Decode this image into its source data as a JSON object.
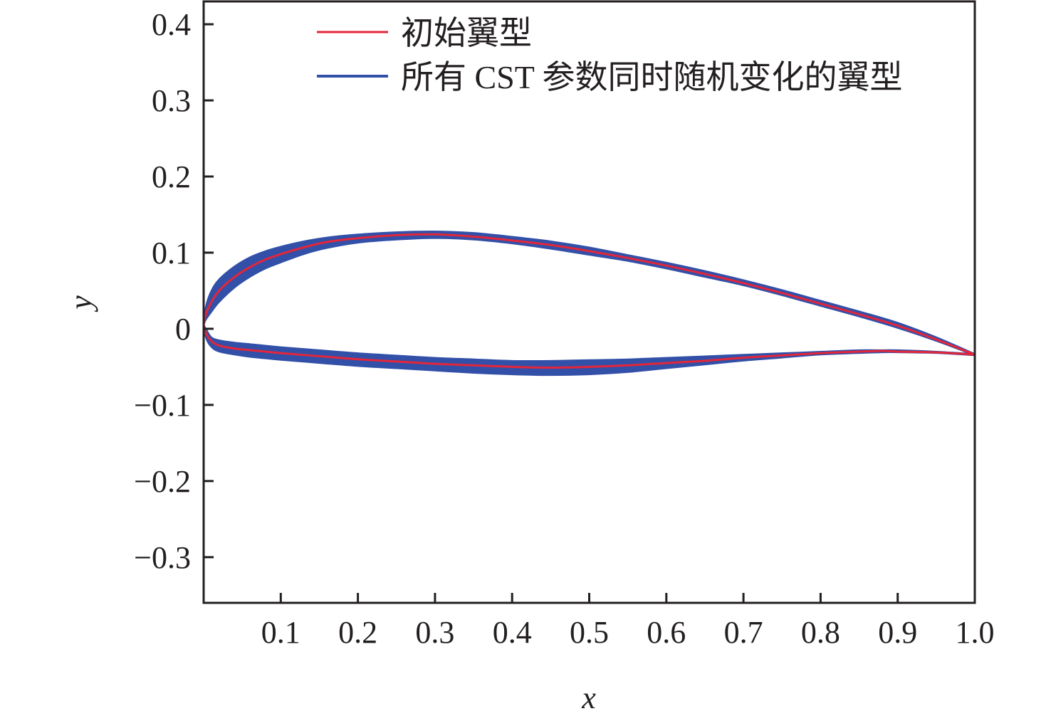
{
  "chart_data": {
    "type": "line",
    "xlabel": "x",
    "ylabel": "y",
    "xlim": [
      0,
      1.0
    ],
    "ylim": [
      -0.36,
      0.43
    ],
    "xticks": [
      {
        "value": 0.1,
        "label": "0.1"
      },
      {
        "value": 0.2,
        "label": "0.2"
      },
      {
        "value": 0.3,
        "label": "0.3"
      },
      {
        "value": 0.4,
        "label": "0.4"
      },
      {
        "value": 0.5,
        "label": "0.5"
      },
      {
        "value": 0.6,
        "label": "0.6"
      },
      {
        "value": 0.7,
        "label": "0.7"
      },
      {
        "value": 0.8,
        "label": "0.8"
      },
      {
        "value": 0.9,
        "label": "0.9"
      },
      {
        "value": 1.0,
        "label": "1.0"
      }
    ],
    "yticks": [
      {
        "value": 0.4,
        "label": "0.4"
      },
      {
        "value": 0.3,
        "label": "0.3"
      },
      {
        "value": 0.2,
        "label": "0.2"
      },
      {
        "value": 0.1,
        "label": "0.1"
      },
      {
        "value": 0,
        "label": "0"
      },
      {
        "value": -0.1,
        "label": "−0.1"
      },
      {
        "value": -0.2,
        "label": "−0.2"
      },
      {
        "value": -0.3,
        "label": "−0.3"
      }
    ],
    "grid": false,
    "legend_position": "top-right",
    "series": [
      {
        "name": "初始翼型",
        "color": "#e3263a",
        "upper": {
          "x": [
            0,
            0.003,
            0.01,
            0.02,
            0.04,
            0.06,
            0.08,
            0.1,
            0.13,
            0.16,
            0.2,
            0.25,
            0.3,
            0.35,
            0.4,
            0.45,
            0.5,
            0.55,
            0.6,
            0.65,
            0.7,
            0.75,
            0.8,
            0.85,
            0.9,
            0.95,
            1.0
          ],
          "y": [
            0.005,
            0.02,
            0.035,
            0.05,
            0.068,
            0.081,
            0.091,
            0.098,
            0.107,
            0.114,
            0.119,
            0.123,
            0.124,
            0.121,
            0.116,
            0.11,
            0.102,
            0.093,
            0.083,
            0.072,
            0.06,
            0.047,
            0.033,
            0.019,
            0.004,
            -0.014,
            -0.034
          ]
        },
        "lower": {
          "x": [
            0,
            0.003,
            0.01,
            0.02,
            0.04,
            0.06,
            0.08,
            0.1,
            0.15,
            0.2,
            0.25,
            0.3,
            0.35,
            0.4,
            0.45,
            0.5,
            0.55,
            0.6,
            0.65,
            0.7,
            0.75,
            0.8,
            0.85,
            0.88,
            0.9,
            0.95,
            1.0
          ],
          "y": [
            0.005,
            -0.006,
            -0.016,
            -0.022,
            -0.026,
            -0.028,
            -0.03,
            -0.032,
            -0.036,
            -0.04,
            -0.043,
            -0.046,
            -0.048,
            -0.05,
            -0.051,
            -0.05,
            -0.048,
            -0.045,
            -0.042,
            -0.038,
            -0.035,
            -0.032,
            -0.03,
            -0.029,
            -0.03,
            -0.031,
            -0.034
          ]
        }
      },
      {
        "name": "所有 CST 参数同时随机变化的翼型",
        "color": "#3350a8",
        "upper_band": {
          "x": [
            0,
            0.003,
            0.01,
            0.02,
            0.04,
            0.06,
            0.08,
            0.1,
            0.13,
            0.16,
            0.2,
            0.25,
            0.3,
            0.35,
            0.4,
            0.45,
            0.5,
            0.55,
            0.6,
            0.65,
            0.7,
            0.75,
            0.8,
            0.85,
            0.9,
            0.95,
            1.0
          ],
          "y_top": [
            0.005,
            0.03,
            0.05,
            0.065,
            0.082,
            0.094,
            0.102,
            0.108,
            0.115,
            0.12,
            0.124,
            0.127,
            0.128,
            0.126,
            0.121,
            0.115,
            0.107,
            0.097,
            0.087,
            0.076,
            0.064,
            0.051,
            0.037,
            0.023,
            0.008,
            -0.011,
            -0.033
          ],
          "y_bottom": [
            0.005,
            0.012,
            0.022,
            0.035,
            0.054,
            0.068,
            0.079,
            0.087,
            0.098,
            0.106,
            0.113,
            0.117,
            0.119,
            0.117,
            0.112,
            0.105,
            0.097,
            0.089,
            0.079,
            0.068,
            0.057,
            0.044,
            0.03,
            0.016,
            0.001,
            -0.016,
            -0.035
          ]
        },
        "lower_band": {
          "x": [
            0,
            0.003,
            0.01,
            0.02,
            0.04,
            0.06,
            0.08,
            0.1,
            0.15,
            0.2,
            0.25,
            0.3,
            0.35,
            0.4,
            0.45,
            0.5,
            0.55,
            0.6,
            0.65,
            0.7,
            0.75,
            0.8,
            0.85,
            0.88,
            0.9,
            0.95,
            1.0
          ],
          "y_top": [
            0.005,
            0.0,
            -0.011,
            -0.015,
            -0.018,
            -0.02,
            -0.022,
            -0.024,
            -0.028,
            -0.032,
            -0.035,
            -0.038,
            -0.04,
            -0.042,
            -0.042,
            -0.041,
            -0.04,
            -0.038,
            -0.036,
            -0.034,
            -0.032,
            -0.03,
            -0.028,
            -0.028,
            -0.028,
            -0.03,
            -0.033
          ],
          "y_bottom": [
            0.005,
            -0.012,
            -0.024,
            -0.03,
            -0.034,
            -0.037,
            -0.039,
            -0.041,
            -0.045,
            -0.049,
            -0.052,
            -0.055,
            -0.058,
            -0.06,
            -0.061,
            -0.06,
            -0.057,
            -0.052,
            -0.047,
            -0.042,
            -0.038,
            -0.034,
            -0.032,
            -0.031,
            -0.031,
            -0.032,
            -0.035
          ]
        }
      }
    ]
  }
}
